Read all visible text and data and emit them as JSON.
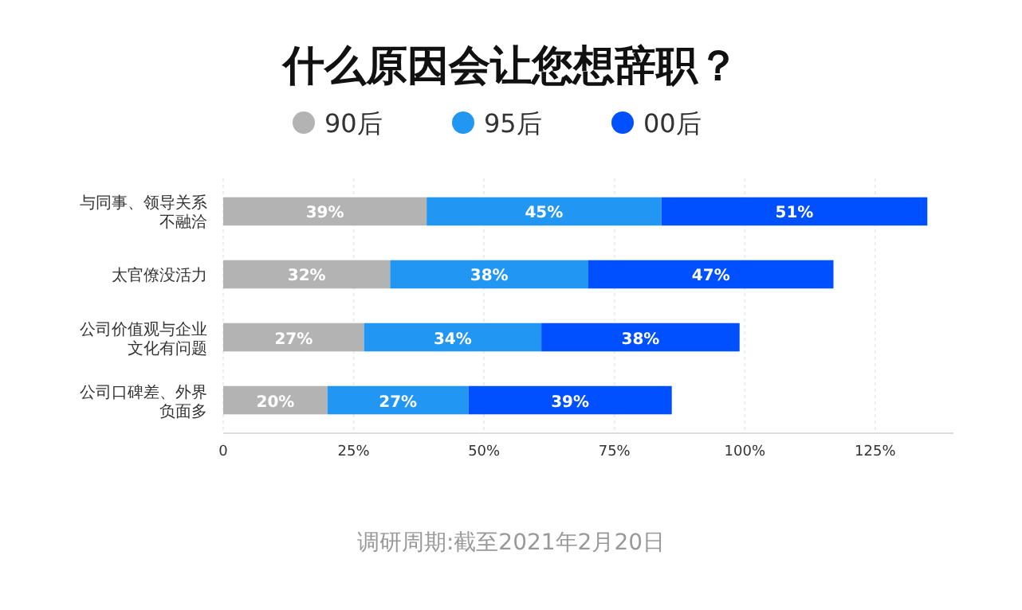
{
  "chart_data": {
    "type": "bar",
    "orientation": "horizontal",
    "stacked": true,
    "title": "什么原因会让您想辞职？",
    "categories": [
      "与同事、领导关系不融洽",
      "太官僚没活力",
      "公司价值观与企业文化有问题",
      "公司口碑差、外界负面多"
    ],
    "series": [
      {
        "name": "90后",
        "color": "#b3b3b3",
        "values": [
          39,
          32,
          27,
          20
        ],
        "value_labels": [
          "39%",
          "32%",
          "27%",
          "20%"
        ]
      },
      {
        "name": "95后",
        "color": "#2196f3",
        "values": [
          45,
          38,
          34,
          27
        ],
        "value_labels": [
          "45%",
          "38%",
          "34%",
          "27%"
        ]
      },
      {
        "name": "00后",
        "color": "#0050ff",
        "values": [
          51,
          47,
          38,
          39
        ],
        "value_labels": [
          "51%",
          "47%",
          "38%",
          "39%"
        ]
      }
    ],
    "xlim": [
      0,
      140
    ],
    "xticks": [
      {
        "value": 0,
        "label": "0"
      },
      {
        "value": 25,
        "label": "25%"
      },
      {
        "value": 50,
        "label": "50%"
      },
      {
        "value": 75,
        "label": "75%"
      },
      {
        "value": 100,
        "label": "100%"
      },
      {
        "value": 125,
        "label": "125%"
      }
    ],
    "grid": "x",
    "legend": "top",
    "marker": "circle",
    "annotations": [
      "调研周期:截至2021年2月20日"
    ]
  }
}
